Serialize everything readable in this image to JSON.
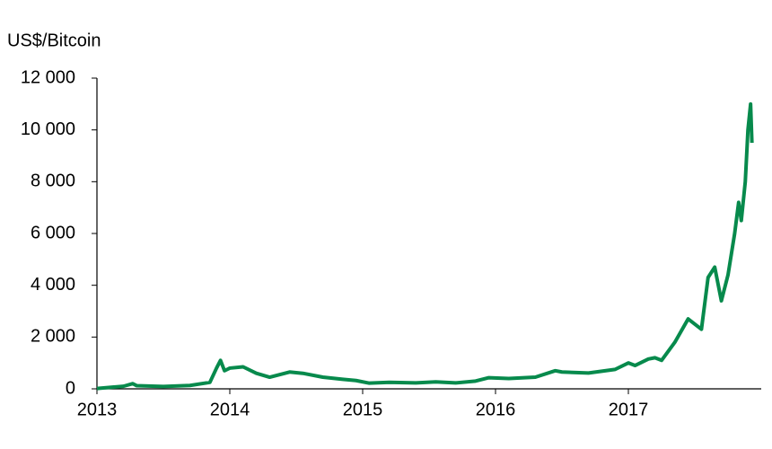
{
  "chart_data": {
    "type": "line",
    "y_label": "US$/Bitcoin",
    "color": "#078a4c",
    "x": [
      2013.0,
      2013.2,
      2013.27,
      2013.3,
      2013.5,
      2013.7,
      2013.85,
      2013.9,
      2013.93,
      2013.96,
      2014.0,
      2014.1,
      2014.2,
      2014.3,
      2014.45,
      2014.55,
      2014.7,
      2014.85,
      2014.95,
      2015.05,
      2015.2,
      2015.4,
      2015.55,
      2015.7,
      2015.85,
      2015.95,
      2016.1,
      2016.3,
      2016.45,
      2016.5,
      2016.7,
      2016.9,
      2017.0,
      2017.05,
      2017.15,
      2017.2,
      2017.25,
      2017.35,
      2017.45,
      2017.5,
      2017.55,
      2017.6,
      2017.65,
      2017.7,
      2017.75,
      2017.8,
      2017.83,
      2017.85,
      2017.88,
      2017.9,
      2017.92,
      2017.93
    ],
    "values": [
      13,
      100,
      200,
      120,
      90,
      130,
      250,
      800,
      1100,
      700,
      800,
      850,
      600,
      450,
      650,
      600,
      450,
      370,
      320,
      220,
      250,
      230,
      270,
      230,
      300,
      430,
      400,
      450,
      700,
      650,
      610,
      750,
      1000,
      900,
      1150,
      1200,
      1100,
      1800,
      2700,
      2500,
      2300,
      4300,
      4700,
      3400,
      4400,
      6000,
      7200,
      6500,
      8000,
      10000,
      11000,
      9500
    ],
    "xlim": [
      2013,
      2018
    ],
    "xticks": [
      2013,
      2014,
      2015,
      2016,
      2017
    ],
    "ylim": [
      0,
      12000
    ],
    "yticks": [
      0,
      {
        "value": 2000,
        "label": "2 000"
      },
      {
        "value": 4000,
        "label": "4 000"
      },
      {
        "value": 6000,
        "label": "6 000"
      },
      {
        "value": 8000,
        "label": "8 000"
      },
      {
        "value": 10000,
        "label": "10 000"
      },
      {
        "value": 12000,
        "label": "12 000"
      }
    ],
    "grid": false
  }
}
